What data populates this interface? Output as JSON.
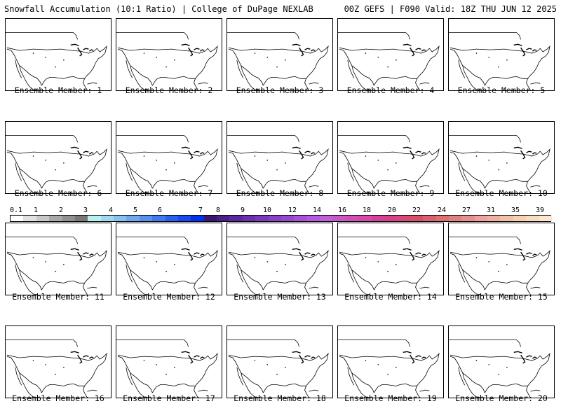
{
  "header": {
    "left_title": "Snowfall Accumulation (10:1 Ratio) | College of DuPage NEXLAB",
    "right_title": "00Z GEFS | F090 Valid: 18Z THU JUN 12 2025"
  },
  "panels": [
    {
      "label": "Ensemble Member: 1"
    },
    {
      "label": "Ensemble Member: 2"
    },
    {
      "label": "Ensemble Member: 3"
    },
    {
      "label": "Ensemble Member: 4"
    },
    {
      "label": "Ensemble Member: 5"
    },
    {
      "label": "Ensemble Member: 6"
    },
    {
      "label": "Ensemble Member: 7"
    },
    {
      "label": "Ensemble Member: 8"
    },
    {
      "label": "Ensemble Member: 9"
    },
    {
      "label": "Ensemble Member: 10"
    },
    {
      "label": "Ensemble Member: 11"
    },
    {
      "label": "Ensemble Member: 12"
    },
    {
      "label": "Ensemble Member: 13"
    },
    {
      "label": "Ensemble Member: 14"
    },
    {
      "label": "Ensemble Member: 15"
    },
    {
      "label": "Ensemble Member: 16"
    },
    {
      "label": "Ensemble Member: 17"
    },
    {
      "label": "Ensemble Member: 18"
    },
    {
      "label": "Ensemble Member: 19"
    },
    {
      "label": "Ensemble Member: 20"
    }
  ],
  "legend": {
    "labels": [
      "0.1",
      "1",
      "2",
      "3",
      "4",
      "5",
      "6",
      "7",
      "8",
      "9",
      "10",
      "12",
      "14",
      "16",
      "18",
      "20",
      "22",
      "24",
      "27",
      "31",
      "35",
      "39"
    ],
    "colors": [
      "#ffffff",
      "#e0e0e0",
      "#c8c8c8",
      "#a8a8a8",
      "#909090",
      "#787878",
      "#b8f0f0",
      "#a0d8f0",
      "#88c0f0",
      "#70a8f0",
      "#5890f0",
      "#4078f0",
      "#2860f0",
      "#1848f0",
      "#0030f0",
      "#3a1870",
      "#4a2088",
      "#5a28a0",
      "#6a30b0",
      "#7a38c0",
      "#8a40c8",
      "#9848d0",
      "#a850d8",
      "#b858e0",
      "#c060d8",
      "#c858c8",
      "#d050b8",
      "#d848a8",
      "#d84098",
      "#d84088",
      "#d84878",
      "#d85068",
      "#d86070",
      "#e07070",
      "#e08080",
      "#e89090",
      "#f0a0a0",
      "#f0b0a0",
      "#f0c0a8",
      "#f8d0b0",
      "#f8dcc0",
      "#fce8d0"
    ]
  }
}
